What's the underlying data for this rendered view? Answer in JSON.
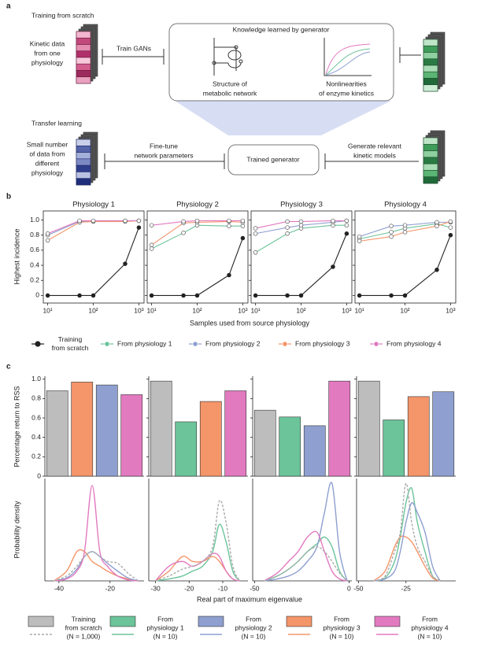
{
  "panel_a": {
    "label": "a",
    "training_title": "Training from scratch",
    "kinetic_data": [
      "Kinetic data",
      "from one",
      "physiology"
    ],
    "train_gans": "Train GANs",
    "knowledge_title": "Knowledge learned by generator",
    "structure": [
      "Structure of",
      "metabolic network"
    ],
    "nonlinearities": [
      "Nonlinearities",
      "of enzyme kinetics"
    ],
    "transfer_title": "Transfer learning",
    "small_data": [
      "Small number",
      "of data from",
      "different",
      "physiology"
    ],
    "fine_tune": [
      "Fine-tune",
      "network parameters"
    ],
    "trained_generator": "Trained generator",
    "generate": [
      "Generate relevant",
      "kinetic models"
    ]
  },
  "figure": {
    "label_b": "b",
    "label_c": "c",
    "b_xlabel": "Samples used from source physiology",
    "b_ylabel": "Highest incidence",
    "c_bar_ylabel": "Percentage return to RSS",
    "c_density_ylabel": "Probability density",
    "c_xlabel": "Real part of maximum eigenvalue"
  },
  "legend_b": [
    {
      "label": [
        "Training",
        "from scratch"
      ],
      "color": "#222222"
    },
    {
      "label": [
        "From physiology 1"
      ],
      "color": "#6cc49a"
    },
    {
      "label": [
        "From physiology 2"
      ],
      "color": "#8e9fd0"
    },
    {
      "label": [
        "From physiology 3"
      ],
      "color": "#f4956a"
    },
    {
      "label": [
        "From physiology 4"
      ],
      "color": "#e27ac0"
    }
  ],
  "legend_c": [
    {
      "label": [
        "Training",
        "from scratch",
        "(N = 1,000)"
      ],
      "color": "#bdbdbd"
    },
    {
      "label": [
        "From",
        "physiology 1",
        "(N = 10)"
      ],
      "color": "#6cc49a"
    },
    {
      "label": [
        "From",
        "physiology 2",
        "(N = 10)"
      ],
      "color": "#8e9fd0"
    },
    {
      "label": [
        "From",
        "physiology 3",
        "(N = 10)"
      ],
      "color": "#f4956a"
    },
    {
      "label": [
        "From",
        "physiology 4",
        "(N = 10)"
      ],
      "color": "#e27ac0"
    }
  ],
  "chart_data": [
    {
      "type": "line",
      "title": "Physiology 1",
      "log_x": true,
      "markers": true,
      "frame": true,
      "x": [
        10,
        50,
        100,
        500,
        1000
      ],
      "xlim": [
        8,
        1300
      ],
      "xticks": [
        {
          "value": 10,
          "label": "10¹"
        },
        {
          "value": 100,
          "label": "10²"
        },
        {
          "value": 1000,
          "label": "10³"
        }
      ],
      "ylim": [
        -0.1,
        1.12
      ],
      "yticks": [
        0,
        0.2,
        0.4,
        0.6,
        0.8,
        {
          "value": 1,
          "label": "1.0"
        }
      ],
      "series": [
        {
          "color": "#8e9fd0",
          "values": [
            0.8,
            0.98,
            0.98,
            0.99,
            0.99
          ]
        },
        {
          "color": "#f4956a",
          "values": [
            0.73,
            0.97,
            0.98,
            0.98,
            0.99
          ]
        },
        {
          "color": "#e27ac0",
          "values": [
            0.82,
            0.99,
            0.99,
            0.99,
            0.99
          ]
        },
        {
          "color": "#222222",
          "values": [
            0,
            0,
            0,
            0.42,
            0.9
          ]
        }
      ]
    },
    {
      "type": "line",
      "title": "Physiology 2",
      "log_x": true,
      "markers": true,
      "frame": true,
      "x": [
        10,
        50,
        100,
        500,
        1000
      ],
      "xlim": [
        8,
        1300
      ],
      "xticks": [
        {
          "value": 10,
          "label": "10¹"
        },
        {
          "value": 100,
          "label": "10²"
        },
        {
          "value": 1000,
          "label": "10³"
        }
      ],
      "ylim": [
        -0.1,
        1.12
      ],
      "yticks": [
        0,
        0.2,
        0.4,
        0.6,
        0.8,
        {
          "value": 1,
          "label": "1.0"
        }
      ],
      "series": [
        {
          "color": "#6cc49a",
          "values": [
            0.62,
            0.83,
            0.93,
            0.92,
            0.92
          ]
        },
        {
          "color": "#f4956a",
          "values": [
            0.67,
            0.96,
            0.97,
            0.98,
            0.97
          ]
        },
        {
          "color": "#e27ac0",
          "values": [
            0.93,
            0.98,
            0.99,
            0.99,
            0.99
          ]
        },
        {
          "color": "#222222",
          "values": [
            0,
            0,
            0,
            0.27,
            0.76
          ]
        }
      ]
    },
    {
      "type": "line",
      "title": "Physiology 3",
      "log_x": true,
      "markers": true,
      "frame": true,
      "x": [
        10,
        50,
        100,
        500,
        1000
      ],
      "xlim": [
        8,
        1300
      ],
      "xticks": [
        {
          "value": 10,
          "label": "10¹"
        },
        {
          "value": 100,
          "label": "10²"
        },
        {
          "value": 1000,
          "label": "10³"
        }
      ],
      "ylim": [
        -0.1,
        1.12
      ],
      "yticks": [
        0,
        0.2,
        0.4,
        0.6,
        0.8,
        {
          "value": 1,
          "label": "1.0"
        }
      ],
      "series": [
        {
          "color": "#6cc49a",
          "values": [
            0.57,
            0.82,
            0.89,
            0.93,
            0.93
          ]
        },
        {
          "color": "#8e9fd0",
          "values": [
            0.82,
            0.9,
            0.93,
            0.97,
            0.99
          ]
        },
        {
          "color": "#e27ac0",
          "values": [
            0.89,
            0.98,
            0.98,
            0.99,
            0.99
          ]
        },
        {
          "color": "#222222",
          "values": [
            0,
            0,
            0,
            0.38,
            0.82
          ]
        }
      ]
    },
    {
      "type": "line",
      "title": "Physiology 4",
      "log_x": true,
      "markers": true,
      "frame": true,
      "x": [
        10,
        50,
        100,
        500,
        1000
      ],
      "xlim": [
        8,
        1300
      ],
      "xticks": [
        {
          "value": 10,
          "label": "10¹"
        },
        {
          "value": 100,
          "label": "10²"
        },
        {
          "value": 1000,
          "label": "10³"
        }
      ],
      "ylim": [
        -0.1,
        1.12
      ],
      "yticks": [
        0,
        0.2,
        0.4,
        0.6,
        0.8,
        {
          "value": 1,
          "label": "1.0"
        }
      ],
      "series": [
        {
          "color": "#6cc49a",
          "values": [
            0.75,
            0.84,
            0.89,
            0.95,
            0.9
          ]
        },
        {
          "color": "#8e9fd0",
          "values": [
            0.78,
            0.92,
            0.93,
            0.97,
            0.97
          ]
        },
        {
          "color": "#f4956a",
          "values": [
            0.72,
            0.78,
            0.84,
            0.92,
            0.98
          ]
        },
        {
          "color": "#222222",
          "values": [
            0,
            0,
            0,
            0.34,
            0.8
          ]
        }
      ]
    },
    {
      "type": "bar",
      "categories": [
        null,
        null,
        null,
        null
      ],
      "values": [
        0.88,
        0.97,
        0.94,
        0.84
      ],
      "colors": [
        "#bdbdbd",
        "#f4956a",
        "#8e9fd0",
        "#e27ac0"
      ],
      "ylim": [
        0,
        1.03
      ],
      "yticks": [
        0,
        0.2,
        0.4,
        0.6,
        0.8,
        {
          "value": 1,
          "label": "1.0"
        }
      ]
    },
    {
      "type": "bar",
      "categories": [
        null,
        null,
        null,
        null
      ],
      "values": [
        0.98,
        0.56,
        0.77,
        0.88
      ],
      "colors": [
        "#bdbdbd",
        "#6cc49a",
        "#f4956a",
        "#e27ac0"
      ],
      "ylim": [
        0,
        1.03
      ],
      "yticks": [
        0,
        0.2,
        0.4,
        0.6,
        0.8,
        {
          "value": 1,
          "label": "1.0"
        }
      ]
    },
    {
      "type": "bar",
      "categories": [
        null,
        null,
        null,
        null
      ],
      "values": [
        0.68,
        0.61,
        0.52,
        0.98
      ],
      "colors": [
        "#bdbdbd",
        "#6cc49a",
        "#8e9fd0",
        "#e27ac0"
      ],
      "ylim": [
        0,
        1.03
      ],
      "yticks": [
        0,
        0.2,
        0.4,
        0.6,
        0.8,
        {
          "value": 1,
          "label": "1.0"
        }
      ]
    },
    {
      "type": "bar",
      "categories": [
        null,
        null,
        null,
        null
      ],
      "values": [
        0.98,
        0.58,
        0.82,
        0.87
      ],
      "colors": [
        "#bdbdbd",
        "#6cc49a",
        "#f4956a",
        "#8e9fd0"
      ],
      "ylim": [
        0,
        1.03
      ],
      "yticks": [
        0,
        0.2,
        0.4,
        0.6,
        0.8,
        {
          "value": 1,
          "label": "1.0"
        }
      ]
    },
    {
      "type": "line",
      "smooth": true,
      "x": [
        -42,
        -37,
        -33,
        -30,
        -27,
        -24,
        -21,
        -17,
        -13,
        -9
      ],
      "xlim": [
        -45.5,
        -6.7
      ],
      "xticks": [
        -40,
        -20
      ],
      "ylim": [
        0,
        1.05
      ],
      "series": [
        {
          "color": "#f4956a",
          "values": [
            0,
            0.1,
            0.3,
            0.3,
            0.2,
            0.15,
            0.1,
            0.05,
            0.02,
            0
          ]
        },
        {
          "color": "#8e9fd0",
          "values": [
            0,
            0.03,
            0.12,
            0.25,
            0.3,
            0.25,
            0.18,
            0.1,
            0.03,
            0
          ]
        },
        {
          "color": "#e27ac0",
          "values": [
            0,
            0.02,
            0.1,
            0.3,
            0.98,
            0.3,
            0.15,
            0.05,
            0.01,
            0
          ]
        },
        {
          "color": "#aaaaaa",
          "dashed": true,
          "values": [
            0,
            0.05,
            0.15,
            0.25,
            0.3,
            0.25,
            0.2,
            0.18,
            0.08,
            0
          ]
        }
      ]
    },
    {
      "type": "line",
      "smooth": true,
      "x": [
        -30,
        -26,
        -22,
        -19,
        -16,
        -13,
        -11,
        -9,
        -7,
        -5
      ],
      "xlim": [
        -32,
        -2.5
      ],
      "xticks": [
        -30,
        -20,
        -10
      ],
      "ylim": [
        0,
        1.05
      ],
      "series": [
        {
          "color": "#6cc49a",
          "values": [
            0,
            0.02,
            0.05,
            0.1,
            0.15,
            0.3,
            0.58,
            0.4,
            0.1,
            0
          ]
        },
        {
          "color": "#f4956a",
          "values": [
            0,
            0.1,
            0.25,
            0.2,
            0.2,
            0.25,
            0.2,
            0.1,
            0.02,
            0
          ]
        },
        {
          "color": "#e27ac0",
          "values": [
            0,
            0.15,
            0.2,
            0.15,
            0.2,
            0.28,
            0.25,
            0.1,
            0.02,
            0
          ]
        },
        {
          "color": "#aaaaaa",
          "dashed": true,
          "values": [
            0,
            0.05,
            0.12,
            0.15,
            0.2,
            0.35,
            0.82,
            0.6,
            0.15,
            0
          ]
        }
      ]
    },
    {
      "type": "line",
      "smooth": true,
      "x": [
        -45,
        -38,
        -32,
        -27,
        -22,
        -17,
        -13,
        -9,
        -5,
        -1
      ],
      "xlim": [
        -51,
        1.5
      ],
      "xticks": [
        -50,
        0
      ],
      "ylim": [
        0,
        1.05
      ],
      "series": [
        {
          "color": "#6cc49a",
          "values": [
            0,
            0.05,
            0.12,
            0.2,
            0.3,
            0.38,
            0.45,
            0.35,
            0.1,
            0
          ]
        },
        {
          "color": "#8e9fd0",
          "values": [
            0,
            0.02,
            0.05,
            0.1,
            0.2,
            0.35,
            0.7,
            1.0,
            0.3,
            0
          ]
        },
        {
          "color": "#e27ac0",
          "values": [
            0,
            0.08,
            0.2,
            0.3,
            0.45,
            0.5,
            0.3,
            0.1,
            0.02,
            0
          ]
        },
        {
          "color": "#aaaaaa",
          "dashed": true,
          "values": [
            0,
            0.05,
            0.12,
            0.2,
            0.3,
            0.35,
            0.3,
            0.2,
            0.08,
            0
          ]
        }
      ]
    },
    {
      "type": "line",
      "smooth": true,
      "x": [
        -42,
        -36,
        -31,
        -28,
        -25,
        -22,
        -19,
        -15,
        -11,
        -7
      ],
      "xlim": [
        -51,
        1.2
      ],
      "xticks": [
        -50,
        -25
      ],
      "ylim": [
        0,
        1.05
      ],
      "series": [
        {
          "color": "#6cc49a",
          "values": [
            0,
            0.03,
            0.2,
            0.45,
            0.8,
            0.95,
            0.6,
            0.3,
            0.05,
            0
          ]
        },
        {
          "color": "#f4956a",
          "values": [
            0,
            0.1,
            0.35,
            0.45,
            0.45,
            0.4,
            0.3,
            0.15,
            0.03,
            0
          ]
        },
        {
          "color": "#8e9fd0",
          "values": [
            0,
            0.02,
            0.1,
            0.3,
            0.6,
            0.8,
            0.7,
            0.5,
            0.15,
            0
          ]
        },
        {
          "color": "#aaaaaa",
          "dashed": true,
          "values": [
            0,
            0.05,
            0.3,
            0.5,
            1.0,
            0.6,
            0.35,
            0.2,
            0.05,
            0
          ]
        }
      ]
    }
  ]
}
